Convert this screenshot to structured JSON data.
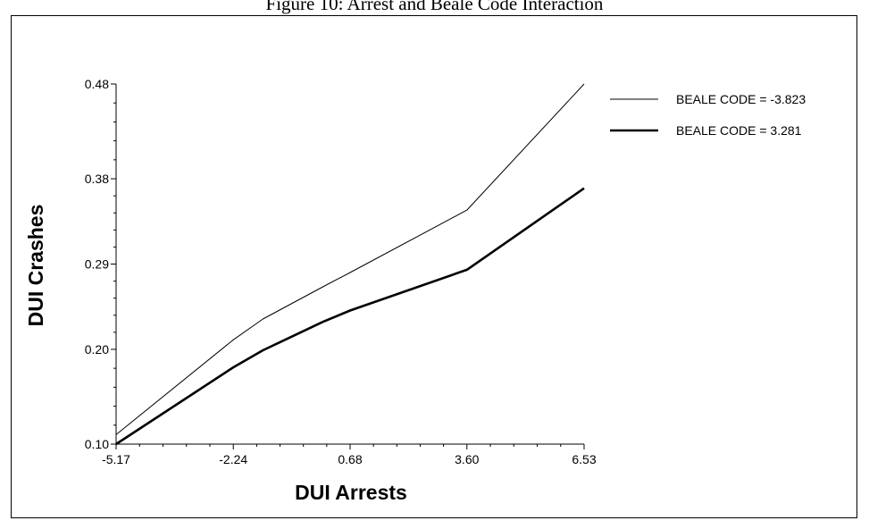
{
  "chart_data": {
    "type": "line",
    "title": "Figure 10: Arrest and Beale Code Interaction",
    "xlabel": "DUI Arrests",
    "ylabel": "DUI Crashes",
    "xlim": [
      -5.17,
      6.53
    ],
    "ylim": [
      0.1,
      0.48
    ],
    "x_ticks": [
      "-5.17",
      "-2.24",
      "0.68",
      "3.60",
      "6.53"
    ],
    "y_ticks": [
      "0.10",
      "0.20",
      "0.29",
      "0.38",
      "0.48"
    ],
    "grid": false,
    "legend_position": "right",
    "series": [
      {
        "name": "BEALE CODE = -3.823",
        "line": "thin",
        "x": [
          -5.17,
          -2.24,
          -1.5,
          0.0,
          0.68,
          3.6,
          6.53
        ],
        "y": [
          0.11,
          0.21,
          0.232,
          0.266,
          0.281,
          0.347,
          0.48
        ]
      },
      {
        "name": "BEALE CODE = 3.281",
        "line": "thick",
        "x": [
          -5.17,
          -2.24,
          -1.5,
          0.0,
          0.68,
          3.6,
          6.53
        ],
        "y": [
          0.1,
          0.181,
          0.199,
          0.229,
          0.241,
          0.284,
          0.37
        ]
      }
    ]
  }
}
